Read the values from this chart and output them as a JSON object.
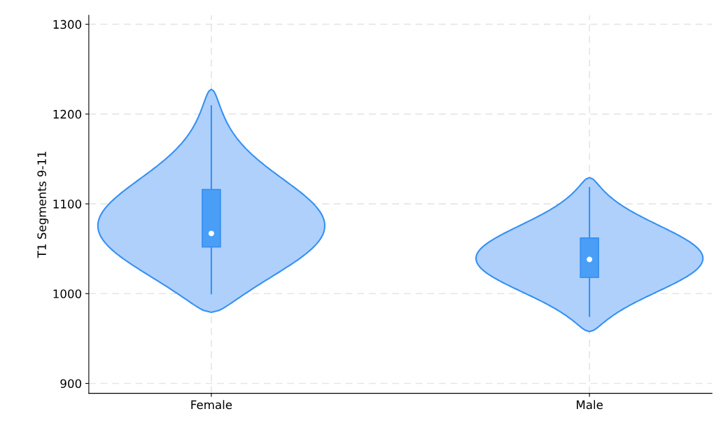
{
  "chart_data": {
    "type": "box",
    "ylabel": "T1 Segments 9-11",
    "categories": [
      "Female",
      "Male"
    ],
    "boxes": [
      {
        "low": 1000,
        "q1": 1052,
        "median": 1067,
        "q3": 1116,
        "high": 1209
      },
      {
        "low": 975,
        "q1": 1018,
        "median": 1038,
        "q3": 1062,
        "high": 1118
      }
    ],
    "color": "#4a9ef5",
    "ylim": [
      889,
      1310
    ],
    "yticks": [
      900,
      1000,
      1100,
      1200,
      1300
    ],
    "grid": true
  }
}
